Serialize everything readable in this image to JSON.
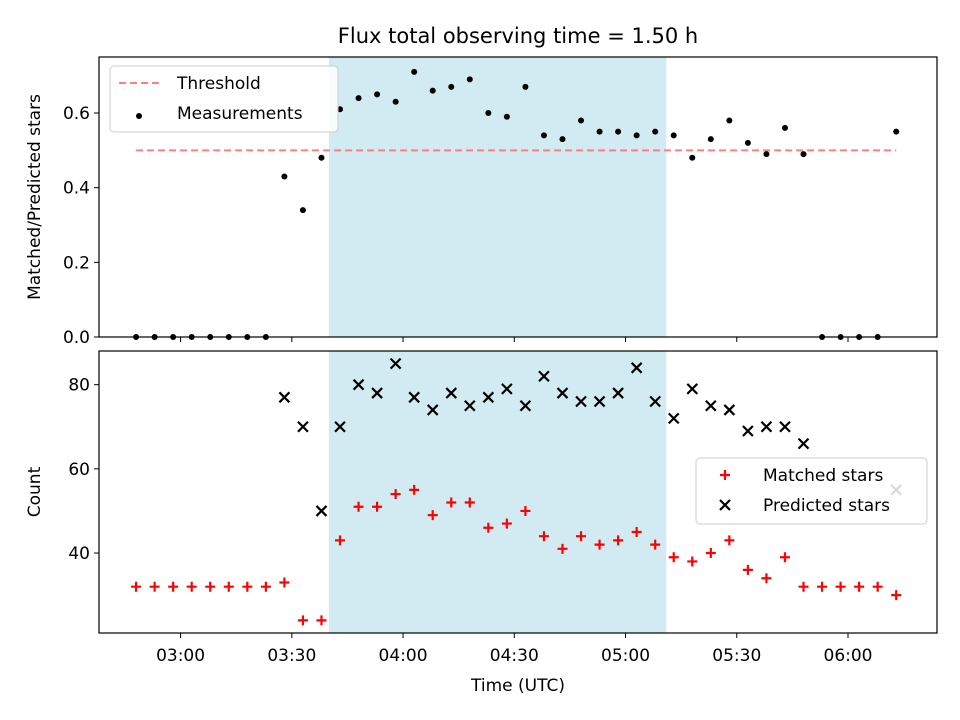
{
  "chart_data": [
    {
      "type": "scatter",
      "title": "Flux total observing time = 1.50 h",
      "xlabel": "",
      "ylabel": "Matched/Predicted stars",
      "ylim": [
        0,
        0.75
      ],
      "yticks": [
        "0.0",
        "0.2",
        "0.4",
        "0.6"
      ],
      "xlim": [
        "02:38",
        "06:24"
      ],
      "grid": false,
      "legend_position": "upper-left",
      "shaded_interval": {
        "start": "03:40",
        "end": "05:11",
        "color": "#add8e6"
      },
      "series": [
        {
          "name": "Threshold",
          "kind": "dashed-line",
          "color": "#ff7f7f",
          "x": [
            "02:48",
            "06:13"
          ],
          "y": [
            0.5,
            0.5
          ]
        },
        {
          "name": "Measurements",
          "kind": "dot",
          "color": "#000000",
          "x": [
            "02:48",
            "02:53",
            "02:58",
            "03:03",
            "03:08",
            "03:13",
            "03:18",
            "03:23",
            "03:28",
            "03:33",
            "03:38",
            "03:43",
            "03:48",
            "03:53",
            "03:58",
            "04:03",
            "04:08",
            "04:13",
            "04:18",
            "04:23",
            "04:28",
            "04:33",
            "04:38",
            "04:43",
            "04:48",
            "04:53",
            "04:58",
            "05:03",
            "05:08",
            "05:13",
            "05:18",
            "05:23",
            "05:28",
            "05:33",
            "05:38",
            "05:43",
            "05:48",
            "05:53",
            "05:58",
            "06:03",
            "06:08",
            "06:13"
          ],
          "y": [
            0.0,
            0.0,
            0.0,
            0.0,
            0.0,
            0.0,
            0.0,
            0.0,
            0.43,
            0.34,
            0.48,
            0.61,
            0.64,
            0.65,
            0.63,
            0.71,
            0.66,
            0.67,
            0.69,
            0.6,
            0.59,
            0.67,
            0.54,
            0.53,
            0.58,
            0.55,
            0.55,
            0.54,
            0.55,
            0.54,
            0.48,
            0.53,
            0.58,
            0.52,
            0.49,
            0.56,
            0.49,
            0.0,
            0.0,
            0.0,
            0.0,
            0.55
          ]
        }
      ]
    },
    {
      "type": "scatter",
      "title": "",
      "xlabel": "Time (UTC)",
      "ylabel": "Count",
      "ylim": [
        21,
        88
      ],
      "yticks": [
        "40",
        "60",
        "80"
      ],
      "xlim": [
        "02:38",
        "06:24"
      ],
      "xticks": [
        "03:00",
        "03:30",
        "04:00",
        "04:30",
        "05:00",
        "05:30",
        "06:00"
      ],
      "grid": false,
      "legend_position": "center-right",
      "shaded_interval": {
        "start": "03:40",
        "end": "05:11",
        "color": "#add8e6"
      },
      "series": [
        {
          "name": "Matched stars",
          "kind": "plus",
          "color": "#ff0000",
          "x": [
            "02:48",
            "02:53",
            "02:58",
            "03:03",
            "03:08",
            "03:13",
            "03:18",
            "03:23",
            "03:28",
            "03:33",
            "03:38",
            "03:43",
            "03:48",
            "03:53",
            "03:58",
            "04:03",
            "04:08",
            "04:13",
            "04:18",
            "04:23",
            "04:28",
            "04:33",
            "04:38",
            "04:43",
            "04:48",
            "04:53",
            "04:58",
            "05:03",
            "05:08",
            "05:13",
            "05:18",
            "05:23",
            "05:28",
            "05:33",
            "05:38",
            "05:43",
            "05:48",
            "05:53",
            "05:58",
            "06:03",
            "06:08",
            "06:13"
          ],
          "y": [
            32,
            32,
            32,
            32,
            32,
            32,
            32,
            32,
            33,
            24,
            24,
            43,
            51,
            51,
            54,
            55,
            49,
            52,
            52,
            46,
            47,
            50,
            44,
            41,
            44,
            42,
            43,
            45,
            42,
            39,
            38,
            40,
            43,
            36,
            34,
            39,
            32,
            32,
            32,
            32,
            32,
            30
          ]
        },
        {
          "name": "Predicted stars",
          "kind": "cross",
          "color": "#000000",
          "x": [
            "03:28",
            "03:33",
            "03:38",
            "03:43",
            "03:48",
            "03:53",
            "03:58",
            "04:03",
            "04:08",
            "04:13",
            "04:18",
            "04:23",
            "04:28",
            "04:33",
            "04:38",
            "04:43",
            "04:48",
            "04:53",
            "04:58",
            "05:03",
            "05:08",
            "05:13",
            "05:18",
            "05:23",
            "05:28",
            "05:33",
            "05:38",
            "05:43",
            "05:48",
            "06:13"
          ],
          "y": [
            77,
            70,
            50,
            70,
            80,
            78,
            85,
            77,
            74,
            78,
            75,
            77,
            79,
            75,
            82,
            78,
            76,
            76,
            78,
            84,
            76,
            72,
            79,
            75,
            74,
            69,
            70,
            70,
            66,
            55
          ]
        }
      ]
    }
  ]
}
